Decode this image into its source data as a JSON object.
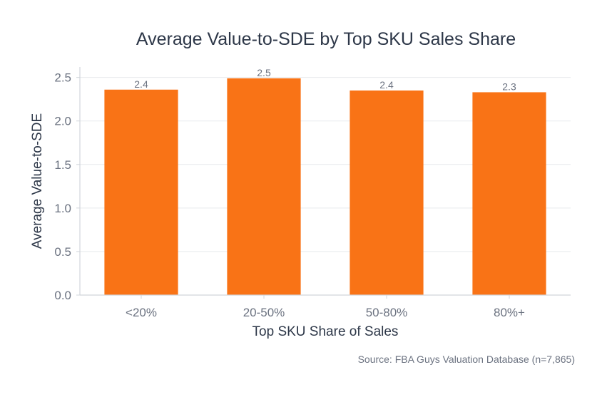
{
  "chart_data": {
    "type": "bar",
    "title": "Average Value-to-SDE by Top SKU Sales Share",
    "xlabel": "Top SKU Share of Sales",
    "ylabel": "Average Value-to-SDE",
    "categories": [
      "<20%",
      "20-50%",
      "50-80%",
      "80%+"
    ],
    "values": [
      2.36,
      2.49,
      2.35,
      2.33
    ],
    "data_labels": [
      "2.4",
      "2.5",
      "2.4",
      "2.3"
    ],
    "ylim": [
      0,
      2.62
    ],
    "yticks": [
      0,
      0.5,
      1.0,
      1.5,
      2.0,
      2.5
    ],
    "ytick_labels": [
      "0.0",
      "0.5",
      "1.0",
      "1.5",
      "2.0",
      "2.5"
    ],
    "grid": true,
    "bar_color": "#f97316",
    "source": "Source: FBA Guys Valuation Database (n=7,865)"
  }
}
